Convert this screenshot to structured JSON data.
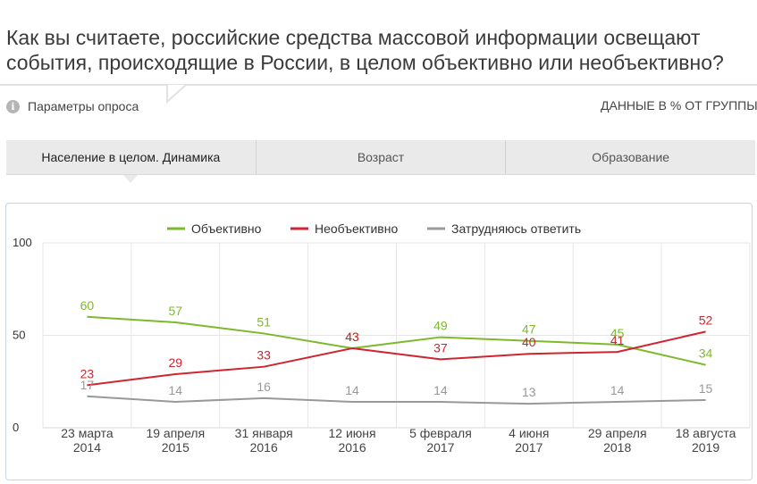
{
  "title": "Как вы считаете, российские средства массовой информации освещают события, происходящие в России, в целом объективно или необъективно?",
  "params_label": "Параметры опроса",
  "units_label": "ДАННЫЕ В % ОТ ГРУППЫ",
  "tabs": [
    {
      "label": "Население в целом. Динамика",
      "active": true
    },
    {
      "label": "Возраст",
      "active": false
    },
    {
      "label": "Образование",
      "active": false
    }
  ],
  "chart_data": {
    "type": "line",
    "categories": [
      [
        "23 марта",
        "2014"
      ],
      [
        "19 апреля",
        "2015"
      ],
      [
        "31 января",
        "2016"
      ],
      [
        "12 июня",
        "2016"
      ],
      [
        "5 февраля",
        "2017"
      ],
      [
        "4 июня",
        "2017"
      ],
      [
        "29 апреля",
        "2018"
      ],
      [
        "18 августа",
        "2019"
      ]
    ],
    "y_ticks": [
      0,
      50,
      100
    ],
    "ylim": [
      0,
      100
    ],
    "legend_position": "top-center",
    "grid": true,
    "series": [
      {
        "name": "Объективно",
        "color": "#7db92c",
        "values": [
          60,
          57,
          51,
          43,
          49,
          47,
          45,
          34
        ]
      },
      {
        "name": "Необъективно",
        "color": "#d02530",
        "values": [
          23,
          29,
          33,
          43,
          37,
          40,
          41,
          52
        ]
      },
      {
        "name": "Затрудняюсь ответить",
        "color": "#999999",
        "values": [
          17,
          14,
          16,
          14,
          14,
          13,
          14,
          15
        ]
      }
    ]
  }
}
